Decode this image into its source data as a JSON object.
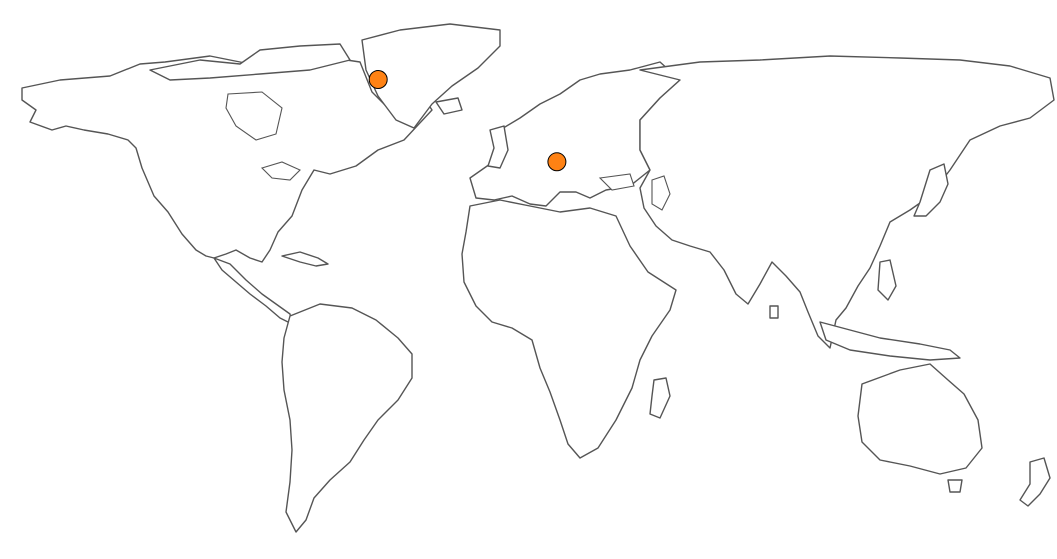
{
  "legend": {},
  "colors": {
    "orange": "#ff8214",
    "blue": "#0000ee",
    "purple": "#800080",
    "red": "#ff0000",
    "darkred": "#8b0000",
    "black": "#2a2a2a",
    "yellow": "#ffff00",
    "green": "#007a00",
    "lime": "#00ff00",
    "brown": "#a0602a",
    "violet": "#e090e8",
    "pink": "#ffc8e6",
    "skyblue": "#7fc8f8",
    "teal": "#2a9a9a",
    "gray": "#a8a8a8",
    "white": "#ffffff",
    "cream": "#fff8dc",
    "navy": "#00008b",
    "indigo": "#8a2be2",
    "magenta": "#e0208c",
    "plum": "#5a0a60",
    "lightsteel": "#b0c4de",
    "yellowgreen": "#b8ff30",
    "honeydew": "#d8ecc8"
  },
  "sites": [
    {
      "lon": 10,
      "lat": 46,
      "color": "orange"
    },
    {
      "lon": -53,
      "lat": 72,
      "color": "orange"
    }
  ]
}
